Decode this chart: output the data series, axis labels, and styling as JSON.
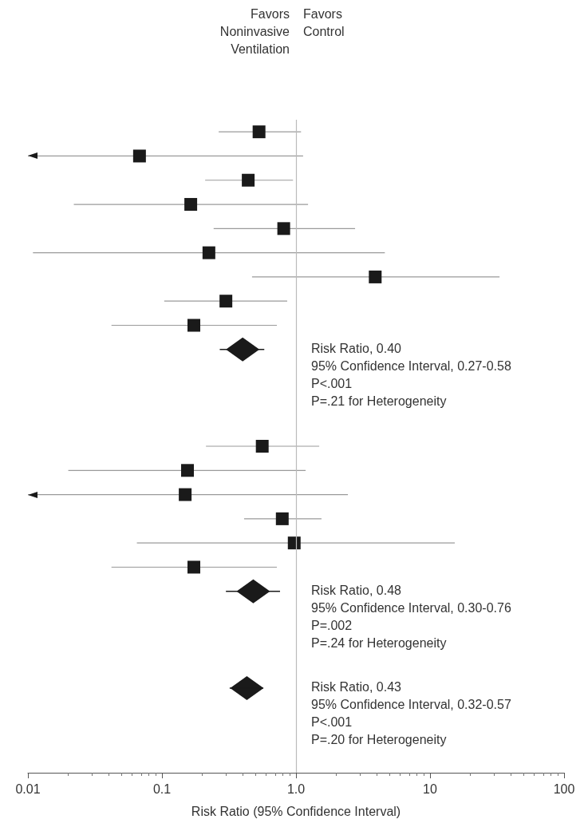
{
  "chart_data": {
    "type": "scatter",
    "orientation": "horizontal",
    "xlabel": "Risk Ratio (95% Confidence Interval)",
    "log": "x",
    "grid": false,
    "xlim": [
      0.01,
      100
    ],
    "xticks": [
      0.01,
      0.1,
      {
        "value": 1,
        "label": "1.0"
      },
      10,
      100
    ],
    "categories": [
      null,
      null,
      null,
      null,
      null,
      null,
      null,
      null,
      null,
      null,
      null,
      null,
      null,
      null,
      null,
      null,
      null,
      null,
      null,
      null,
      null,
      null,
      null,
      null,
      null,
      null,
      null
    ],
    "series": [
      {
        "color": "#1a1a1a",
        "marker": "square",
        "values": [
          0.53,
          0.068,
          0.44,
          0.164,
          0.81,
          0.224,
          3.9,
          0.3,
          0.173,
          null,
          null,
          null,
          null,
          0.56,
          0.155,
          0.149,
          0.79,
          0.97,
          0.173,
          null,
          null,
          null,
          null,
          null,
          null,
          null,
          null
        ],
        "errors": [
          [
            0.265,
            1.09
          ],
          [
            0.01,
            1.13
          ],
          [
            0.21,
            0.95
          ],
          [
            0.022,
            1.23
          ],
          [
            0.243,
            2.76
          ],
          [
            0.0109,
            4.6
          ],
          [
            0.47,
            33
          ],
          [
            0.104,
            0.86
          ],
          [
            0.042,
            0.72
          ],
          null,
          null,
          null,
          null,
          [
            0.213,
            1.49
          ],
          [
            0.02,
            1.18
          ],
          [
            0.01,
            2.44
          ],
          [
            0.41,
            1.55
          ],
          [
            0.065,
            15.3
          ],
          [
            0.042,
            0.72
          ],
          null,
          null,
          null,
          null,
          null,
          null,
          null,
          null
        ]
      },
      {
        "color": "#1a1a1a",
        "marker": "diamond",
        "values": [
          null,
          null,
          null,
          null,
          null,
          null,
          null,
          null,
          null,
          0.4,
          null,
          null,
          null,
          null,
          null,
          null,
          null,
          null,
          null,
          0.48,
          null,
          null,
          null,
          0.43,
          null,
          null,
          null
        ],
        "errors": [
          null,
          null,
          null,
          null,
          null,
          null,
          null,
          null,
          null,
          [
            0.27,
            0.58
          ],
          null,
          null,
          null,
          null,
          null,
          null,
          null,
          null,
          null,
          [
            0.3,
            0.76
          ],
          null,
          null,
          null,
          [
            0.32,
            0.57
          ],
          null,
          null,
          null
        ]
      }
    ],
    "ref_lines": [
      {
        "axis": "x",
        "value": 1,
        "color": "#bbbbbb"
      }
    ],
    "annotations": [
      "Favors\nNoninvasive\nVentilation",
      "Favors\nControl",
      "Risk Ratio, 0.40\n95% Confidence Interval, 0.27-0.58\nP<.001\nP=.21 for Heterogeneity",
      "Risk Ratio, 0.48\n95% Confidence Interval, 0.30-0.76\nP=.002\nP=.24 for Heterogeneity",
      "Risk Ratio, 0.43\n95% Confidence Interval, 0.32-0.57\nP<.001\nP=.20 for Heterogeneity"
    ]
  }
}
